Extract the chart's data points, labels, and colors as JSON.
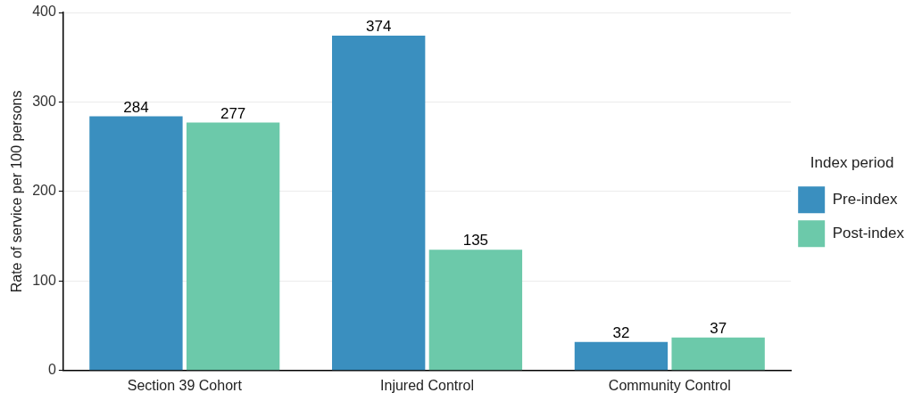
{
  "chart_data": {
    "type": "bar",
    "ylabel": "Rate of service per 100 persons",
    "legend_title": "Index period",
    "categories": [
      "Section 39 Cohort",
      "Injured Control",
      "Community Control"
    ],
    "series": [
      {
        "name": "Pre-index",
        "color": "#3a8fbf",
        "values": [
          284,
          374,
          32
        ]
      },
      {
        "name": "Post-index",
        "color": "#6cc9aa",
        "values": [
          277,
          135,
          37
        ]
      }
    ],
    "ylim": [
      0,
      400
    ],
    "yticks": [
      0,
      100,
      200,
      300,
      400
    ],
    "grid": "y",
    "legend": "right",
    "data_labels": true
  }
}
